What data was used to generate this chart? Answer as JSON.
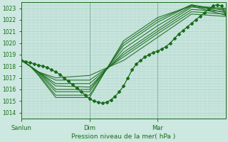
{
  "xlabel": "Pression niveau de la mer( hPa )",
  "xtick_labels": [
    "Sanlun",
    "Dim",
    "Mar"
  ],
  "xtick_positions": [
    0.0,
    0.333,
    0.667
  ],
  "xlim": [
    0.0,
    1.0
  ],
  "ylim": [
    1013.5,
    1023.5
  ],
  "yticks": [
    1014,
    1015,
    1016,
    1017,
    1018,
    1019,
    1020,
    1021,
    1022,
    1023
  ],
  "bg_color": "#cce8e0",
  "grid_color": "#a8cec8",
  "line_color": "#1a6b1a",
  "observed_line": {
    "x": [
      0.0,
      0.021,
      0.042,
      0.063,
      0.083,
      0.104,
      0.125,
      0.146,
      0.167,
      0.188,
      0.208,
      0.229,
      0.25,
      0.271,
      0.292,
      0.313,
      0.333,
      0.354,
      0.375,
      0.396,
      0.417,
      0.438,
      0.458,
      0.479,
      0.5,
      0.521,
      0.542,
      0.563,
      0.583,
      0.604,
      0.625,
      0.646,
      0.667,
      0.688,
      0.708,
      0.729,
      0.75,
      0.771,
      0.792,
      0.813,
      0.833,
      0.854,
      0.875,
      0.896,
      0.917,
      0.938,
      0.958,
      0.979,
      1.0
    ],
    "y": [
      1018.5,
      1018.4,
      1018.3,
      1018.2,
      1018.1,
      1018.0,
      1017.9,
      1017.7,
      1017.5,
      1017.3,
      1017.0,
      1016.7,
      1016.4,
      1016.1,
      1015.8,
      1015.5,
      1015.2,
      1015.0,
      1014.9,
      1014.8,
      1014.9,
      1015.1,
      1015.4,
      1015.8,
      1016.3,
      1017.0,
      1017.7,
      1018.2,
      1018.5,
      1018.8,
      1019.0,
      1019.2,
      1019.3,
      1019.5,
      1019.7,
      1020.0,
      1020.4,
      1020.8,
      1021.1,
      1021.4,
      1021.7,
      1022.0,
      1022.3,
      1022.6,
      1022.9,
      1023.2,
      1023.3,
      1023.2,
      1022.5
    ]
  },
  "forecast_lines": [
    {
      "x": [
        0.0,
        0.042,
        0.083,
        0.167,
        0.333,
        0.5,
        0.667,
        0.833,
        1.0
      ],
      "y": [
        1018.5,
        1018.0,
        1017.5,
        1017.0,
        1017.2,
        1018.5,
        1020.5,
        1022.5,
        1022.3
      ]
    },
    {
      "x": [
        0.0,
        0.042,
        0.083,
        0.167,
        0.333,
        0.5,
        0.667,
        0.833,
        1.0
      ],
      "y": [
        1018.5,
        1018.0,
        1017.5,
        1016.8,
        1016.8,
        1018.8,
        1020.8,
        1022.7,
        1022.5
      ]
    },
    {
      "x": [
        0.0,
        0.042,
        0.083,
        0.167,
        0.333,
        0.5,
        0.667,
        0.833,
        1.0
      ],
      "y": [
        1018.5,
        1018.0,
        1017.5,
        1016.5,
        1016.5,
        1019.0,
        1021.0,
        1022.9,
        1022.7
      ]
    },
    {
      "x": [
        0.0,
        0.042,
        0.083,
        0.167,
        0.333,
        0.5,
        0.667,
        0.833,
        1.0
      ],
      "y": [
        1018.5,
        1018.0,
        1017.5,
        1016.3,
        1016.2,
        1019.2,
        1021.2,
        1023.1,
        1022.9
      ]
    },
    {
      "x": [
        0.0,
        0.042,
        0.083,
        0.167,
        0.333,
        0.5,
        0.667,
        0.833,
        1.0
      ],
      "y": [
        1018.5,
        1018.0,
        1017.5,
        1016.0,
        1016.0,
        1019.5,
        1021.5,
        1023.2,
        1023.0
      ]
    },
    {
      "x": [
        0.0,
        0.042,
        0.083,
        0.167,
        0.333,
        0.5,
        0.667,
        0.833,
        1.0
      ],
      "y": [
        1018.5,
        1018.0,
        1017.4,
        1015.8,
        1015.8,
        1019.8,
        1021.8,
        1023.3,
        1022.8
      ]
    },
    {
      "x": [
        0.0,
        0.042,
        0.083,
        0.167,
        0.333,
        0.5,
        0.667,
        0.833,
        1.0
      ],
      "y": [
        1018.5,
        1018.0,
        1017.3,
        1015.5,
        1015.5,
        1020.0,
        1022.0,
        1023.3,
        1022.6
      ]
    },
    {
      "x": [
        0.0,
        0.042,
        0.083,
        0.167,
        0.333,
        0.5,
        0.667,
        0.833,
        1.0
      ],
      "y": [
        1018.5,
        1018.0,
        1017.2,
        1015.3,
        1015.3,
        1020.2,
        1022.2,
        1023.2,
        1022.4
      ]
    }
  ],
  "marker_style": "D",
  "marker_size": 2.0,
  "line_width": 0.9,
  "forecast_lw": 0.8
}
